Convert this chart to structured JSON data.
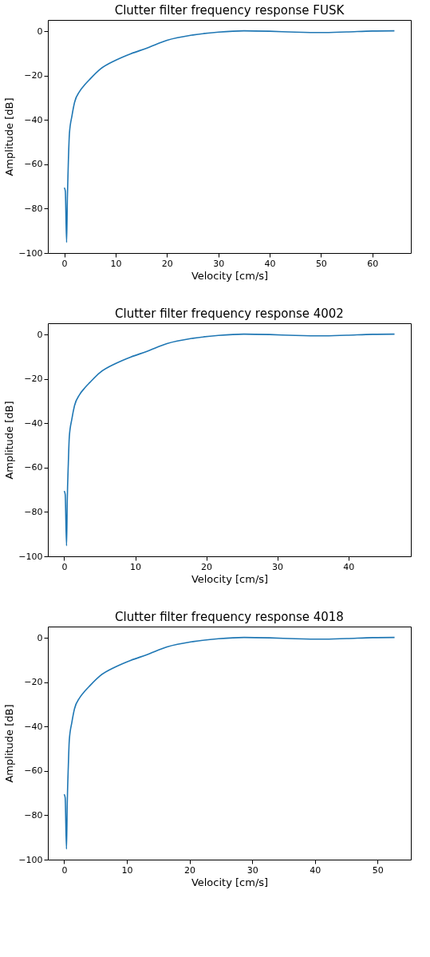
{
  "chart_data": [
    {
      "type": "line",
      "title": "Clutter filter frequency response FUSK",
      "xlabel": "Velocity [cm/s]",
      "ylabel": "Amplitude [dB]",
      "x": [
        0,
        0.2,
        0.45,
        0.6,
        0.8,
        1,
        1.5,
        2,
        3,
        4,
        5,
        7,
        10,
        13,
        16,
        20,
        25,
        30,
        35,
        40,
        45,
        50,
        55,
        60,
        64.3
      ],
      "series": [
        {
          "color": "#1f77b4",
          "values": [
            -70.5,
            -72,
            -95.2,
            -75,
            -58,
            -46,
            -38,
            -32,
            -27,
            -24,
            -21.5,
            -17,
            -13,
            -10,
            -7.6,
            -4,
            -1.6,
            -0.3,
            0.3,
            0.1,
            -0.3,
            -0.5,
            -0.2,
            0.2,
            0.3
          ]
        }
      ],
      "xlim": [
        -3.2,
        67.5
      ],
      "xticks": [
        0,
        10,
        20,
        30,
        40,
        50,
        60
      ],
      "ylim": [
        -100,
        5.2
      ],
      "yticks": [
        -100,
        -80,
        -60,
        -40,
        -20,
        0
      ],
      "grid": false,
      "marker": "none",
      "line_style": "solid"
    },
    {
      "type": "line",
      "title": "Clutter filter frequency response 4002",
      "xlabel": "Velocity [cm/s]",
      "ylabel": "Amplitude [dB]",
      "x": [
        0,
        0.14,
        0.33,
        0.43,
        0.58,
        0.72,
        1.08,
        1.45,
        2.17,
        2.89,
        3.62,
        5.06,
        7.23,
        9.4,
        11.57,
        14.46,
        18.08,
        21.69,
        25.31,
        28.92,
        32.54,
        36.15,
        39.77,
        43.38,
        46.5
      ],
      "series": [
        {
          "color": "#1f77b4",
          "values": [
            -70.5,
            -72,
            -95.2,
            -75,
            -58,
            -46,
            -38,
            -32,
            -27,
            -24,
            -21.5,
            -17,
            -13,
            -10,
            -7.6,
            -4,
            -1.6,
            -0.3,
            0.3,
            0.1,
            -0.3,
            -0.5,
            -0.2,
            0.2,
            0.3
          ]
        }
      ],
      "xlim": [
        -2.3,
        48.8
      ],
      "xticks": [
        0,
        10,
        20,
        30,
        40
      ],
      "ylim": [
        -100,
        5.2
      ],
      "yticks": [
        -100,
        -80,
        -60,
        -40,
        -20,
        0
      ],
      "grid": false,
      "marker": "none",
      "line_style": "solid"
    },
    {
      "type": "line",
      "title": "Clutter filter frequency response 4018",
      "xlabel": "Velocity [cm/s]",
      "ylabel": "Amplitude [dB]",
      "x": [
        0,
        0.16,
        0.37,
        0.49,
        0.66,
        0.82,
        1.23,
        1.64,
        2.46,
        3.28,
        4.1,
        5.74,
        8.2,
        10.66,
        13.12,
        16.4,
        20.5,
        24.6,
        28.7,
        32.8,
        36.9,
        41,
        45.1,
        49.2,
        52.7
      ],
      "series": [
        {
          "color": "#1f77b4",
          "values": [
            -70.5,
            -72,
            -95.2,
            -75,
            -58,
            -46,
            -38,
            -32,
            -27,
            -24,
            -21.5,
            -17,
            -13,
            -10,
            -7.6,
            -4,
            -1.6,
            -0.3,
            0.3,
            0.1,
            -0.3,
            -0.5,
            -0.2,
            0.2,
            0.3
          ]
        }
      ],
      "xlim": [
        -2.6,
        55.3
      ],
      "xticks": [
        0,
        10,
        20,
        30,
        40,
        50
      ],
      "ylim": [
        -100,
        5.2
      ],
      "yticks": [
        -100,
        -80,
        -60,
        -40,
        -20,
        0
      ],
      "grid": false,
      "marker": "none",
      "line_style": "solid"
    }
  ]
}
